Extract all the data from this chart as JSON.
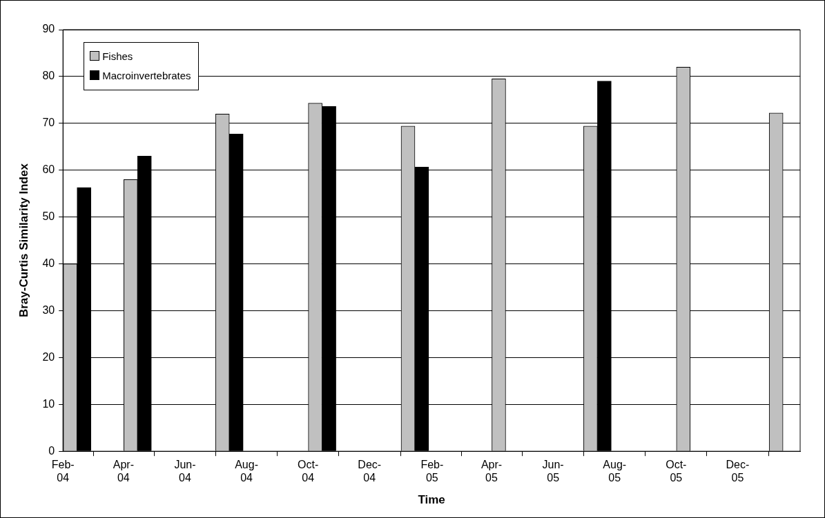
{
  "chart_data": {
    "type": "bar",
    "xlabel": "Time",
    "ylabel": "Bray-Curtis Similarity Index",
    "x": [
      "2004-02-15",
      "2004-04-15",
      "2004-07-15",
      "2004-10-15",
      "2005-01-15",
      "2005-04-15",
      "2005-07-15",
      "2005-10-15",
      "2006-01-15"
    ],
    "series": [
      {
        "name": "Fishes",
        "color": "#c0c0c0",
        "values": [
          40,
          58,
          72,
          74.3,
          69.4,
          79.5,
          69.4,
          82,
          72.2
        ]
      },
      {
        "name": "Macroinvertebrates",
        "color": "#000000",
        "values": [
          56.3,
          63,
          67.7,
          73.6,
          60.7,
          null,
          79,
          null,
          null
        ]
      }
    ],
    "xlim": [
      "2004-02-01",
      "2006-02-01"
    ],
    "xticks": [
      {
        "value": "2004-02-01",
        "label": "Feb-04"
      },
      {
        "value": "2004-04-01",
        "label": "Apr-04"
      },
      {
        "value": "2004-06-01",
        "label": "Jun-04"
      },
      {
        "value": "2004-08-01",
        "label": "Aug-04"
      },
      {
        "value": "2004-10-01",
        "label": "Oct-04"
      },
      {
        "value": "2004-12-01",
        "label": "Dec-04"
      },
      {
        "value": "2005-02-01",
        "label": "Feb-05"
      },
      {
        "value": "2005-04-01",
        "label": "Apr-05"
      },
      {
        "value": "2005-06-01",
        "label": "Jun-05"
      },
      {
        "value": "2005-08-01",
        "label": "Aug-05"
      },
      {
        "value": "2005-10-01",
        "label": "Oct-05"
      },
      {
        "value": "2005-12-01",
        "label": "Dec-05"
      },
      {
        "value": "2006-02-01",
        "label": null
      }
    ],
    "ylim": [
      0,
      90
    ],
    "yticks": [
      0,
      10,
      20,
      30,
      40,
      50,
      60,
      70,
      80,
      90
    ],
    "grid": "y",
    "legend": "top left"
  }
}
